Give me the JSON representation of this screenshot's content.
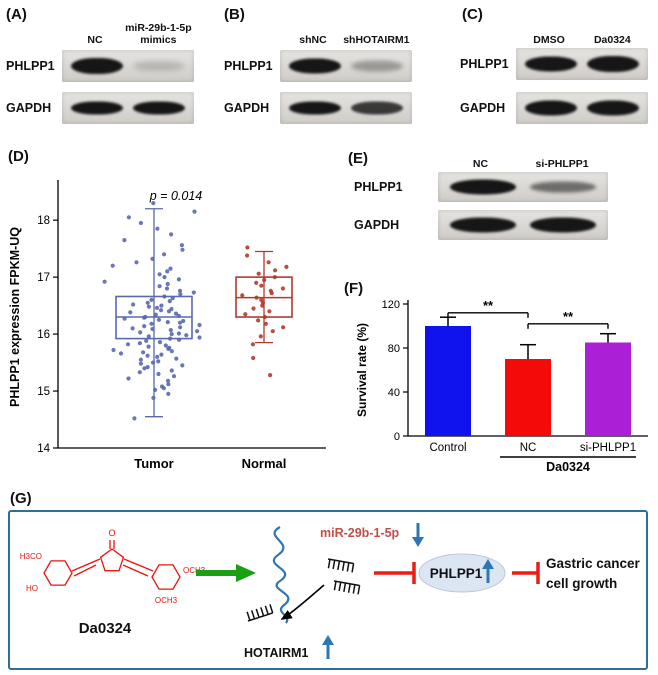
{
  "figure": {
    "panels": {
      "A": {
        "tag": "(A)",
        "lanes": [
          "NC",
          "miR-29b-1-5p mimics"
        ],
        "rows": [
          "PHLPP1",
          "GAPDH"
        ]
      },
      "B": {
        "tag": "(B)",
        "lanes": [
          "shNC",
          "shHOTAIRM1"
        ],
        "rows": [
          "PHLPP1",
          "GAPDH"
        ]
      },
      "C": {
        "tag": "(C)",
        "lanes": [
          "DMSO",
          "Da0324"
        ],
        "rows": [
          "PHLPP1",
          "GAPDH"
        ]
      },
      "D": {
        "tag": "(D)"
      },
      "E": {
        "tag": "(E)",
        "lanes": [
          "NC",
          "si-PHLPP1"
        ],
        "rows": [
          "PHLPP1",
          "GAPDH"
        ]
      },
      "F": {
        "tag": "(F)"
      },
      "G": {
        "tag": "(G)",
        "molecule_name": "Da0324",
        "molecule_atoms": {
          "h3co": "H3CO",
          "ho": "HO",
          "o": "O",
          "och3_right": "OCH3",
          "och3_bottom": "OCH3"
        },
        "lncrna": "HOTAIRM1",
        "mirna": "miR-29b-1-5p",
        "gene": "PHLPP1",
        "outcome_line1": "Gastric cancer",
        "outcome_line2": "cell growth",
        "colors": {
          "molecule": "#e8150d",
          "arrow_green": "#1aa012",
          "rna_blue": "#2e75b6",
          "inhibit_red": "#ec1c14",
          "mirna_text": "#c05048",
          "ellipse_fill": "#dce6f2"
        }
      }
    }
  },
  "chart_data": [
    {
      "id": "D",
      "type": "scatter",
      "p_label": "p = 0.014",
      "ylabel": "PHLPP1 expression FPKM-UQ",
      "ylim": [
        14,
        18.6
      ],
      "yticks": [
        14,
        15,
        16,
        17,
        18
      ],
      "categories": [
        "Tumor",
        "Normal"
      ],
      "legend": "none",
      "grid": false,
      "series": [
        {
          "name": "Tumor",
          "color": "#5a68ae",
          "box": {
            "q1": 15.92,
            "median": 16.3,
            "q3": 16.66,
            "whisker_low": 14.55,
            "whisker_high": 18.2
          },
          "points": [
            14.52,
            14.88,
            14.95,
            15.02,
            15.05,
            15.08,
            15.12,
            15.18,
            15.22,
            15.26,
            15.3,
            15.33,
            15.36,
            15.4,
            15.42,
            15.45,
            15.48,
            15.5,
            15.52,
            15.55,
            15.57,
            15.6,
            15.62,
            15.64,
            15.66,
            15.68,
            15.7,
            15.72,
            15.74,
            15.76,
            15.78,
            15.8,
            15.82,
            15.84,
            15.86,
            15.88,
            15.9,
            15.92,
            15.94,
            15.96,
            15.98,
            16.0,
            16.01,
            16.03,
            16.05,
            16.07,
            16.09,
            16.1,
            16.12,
            16.14,
            16.16,
            16.18,
            16.2,
            16.21,
            16.23,
            16.25,
            16.27,
            16.29,
            16.3,
            16.32,
            16.34,
            16.36,
            16.38,
            16.4,
            16.42,
            16.44,
            16.46,
            16.48,
            16.5,
            16.52,
            16.55,
            16.58,
            16.6,
            16.63,
            16.66,
            16.7,
            16.73,
            16.76,
            16.8,
            16.84,
            16.88,
            16.92,
            16.96,
            17.0,
            17.05,
            17.1,
            17.15,
            17.2,
            17.26,
            17.32,
            17.4,
            17.48,
            17.56,
            17.65,
            17.75,
            17.85,
            17.95,
            18.05,
            18.15,
            18.3
          ]
        },
        {
          "name": "Normal",
          "color": "#b03a2e",
          "box": {
            "q1": 16.3,
            "median": 16.64,
            "q3": 17.0,
            "whisker_low": 15.85,
            "whisker_high": 17.45
          },
          "points": [
            15.28,
            15.58,
            15.82,
            15.96,
            16.05,
            16.12,
            16.18,
            16.24,
            16.3,
            16.35,
            16.4,
            16.45,
            16.5,
            16.55,
            16.6,
            16.64,
            16.68,
            16.72,
            16.76,
            16.8,
            16.85,
            16.9,
            16.95,
            17.0,
            17.06,
            17.12,
            17.18,
            17.26,
            17.38,
            17.52
          ]
        }
      ]
    },
    {
      "id": "F",
      "type": "bar",
      "ylabel": "Survival rate (%)",
      "ylim": [
        0,
        120
      ],
      "yticks": [
        0,
        40,
        80,
        120
      ],
      "categories": [
        "Control",
        "NC",
        "si-PHLPP1"
      ],
      "values": [
        100,
        70,
        85
      ],
      "errors": [
        8,
        13,
        8
      ],
      "colors": [
        "#1012ee",
        "#f50a0a",
        "#ab1fd6"
      ],
      "group_label": "Da0324",
      "group_span": [
        1,
        2
      ],
      "significance": [
        {
          "from": 0,
          "to": 1,
          "label": "**",
          "y": 112
        },
        {
          "from": 1,
          "to": 2,
          "label": "**",
          "y": 102
        }
      ]
    }
  ]
}
